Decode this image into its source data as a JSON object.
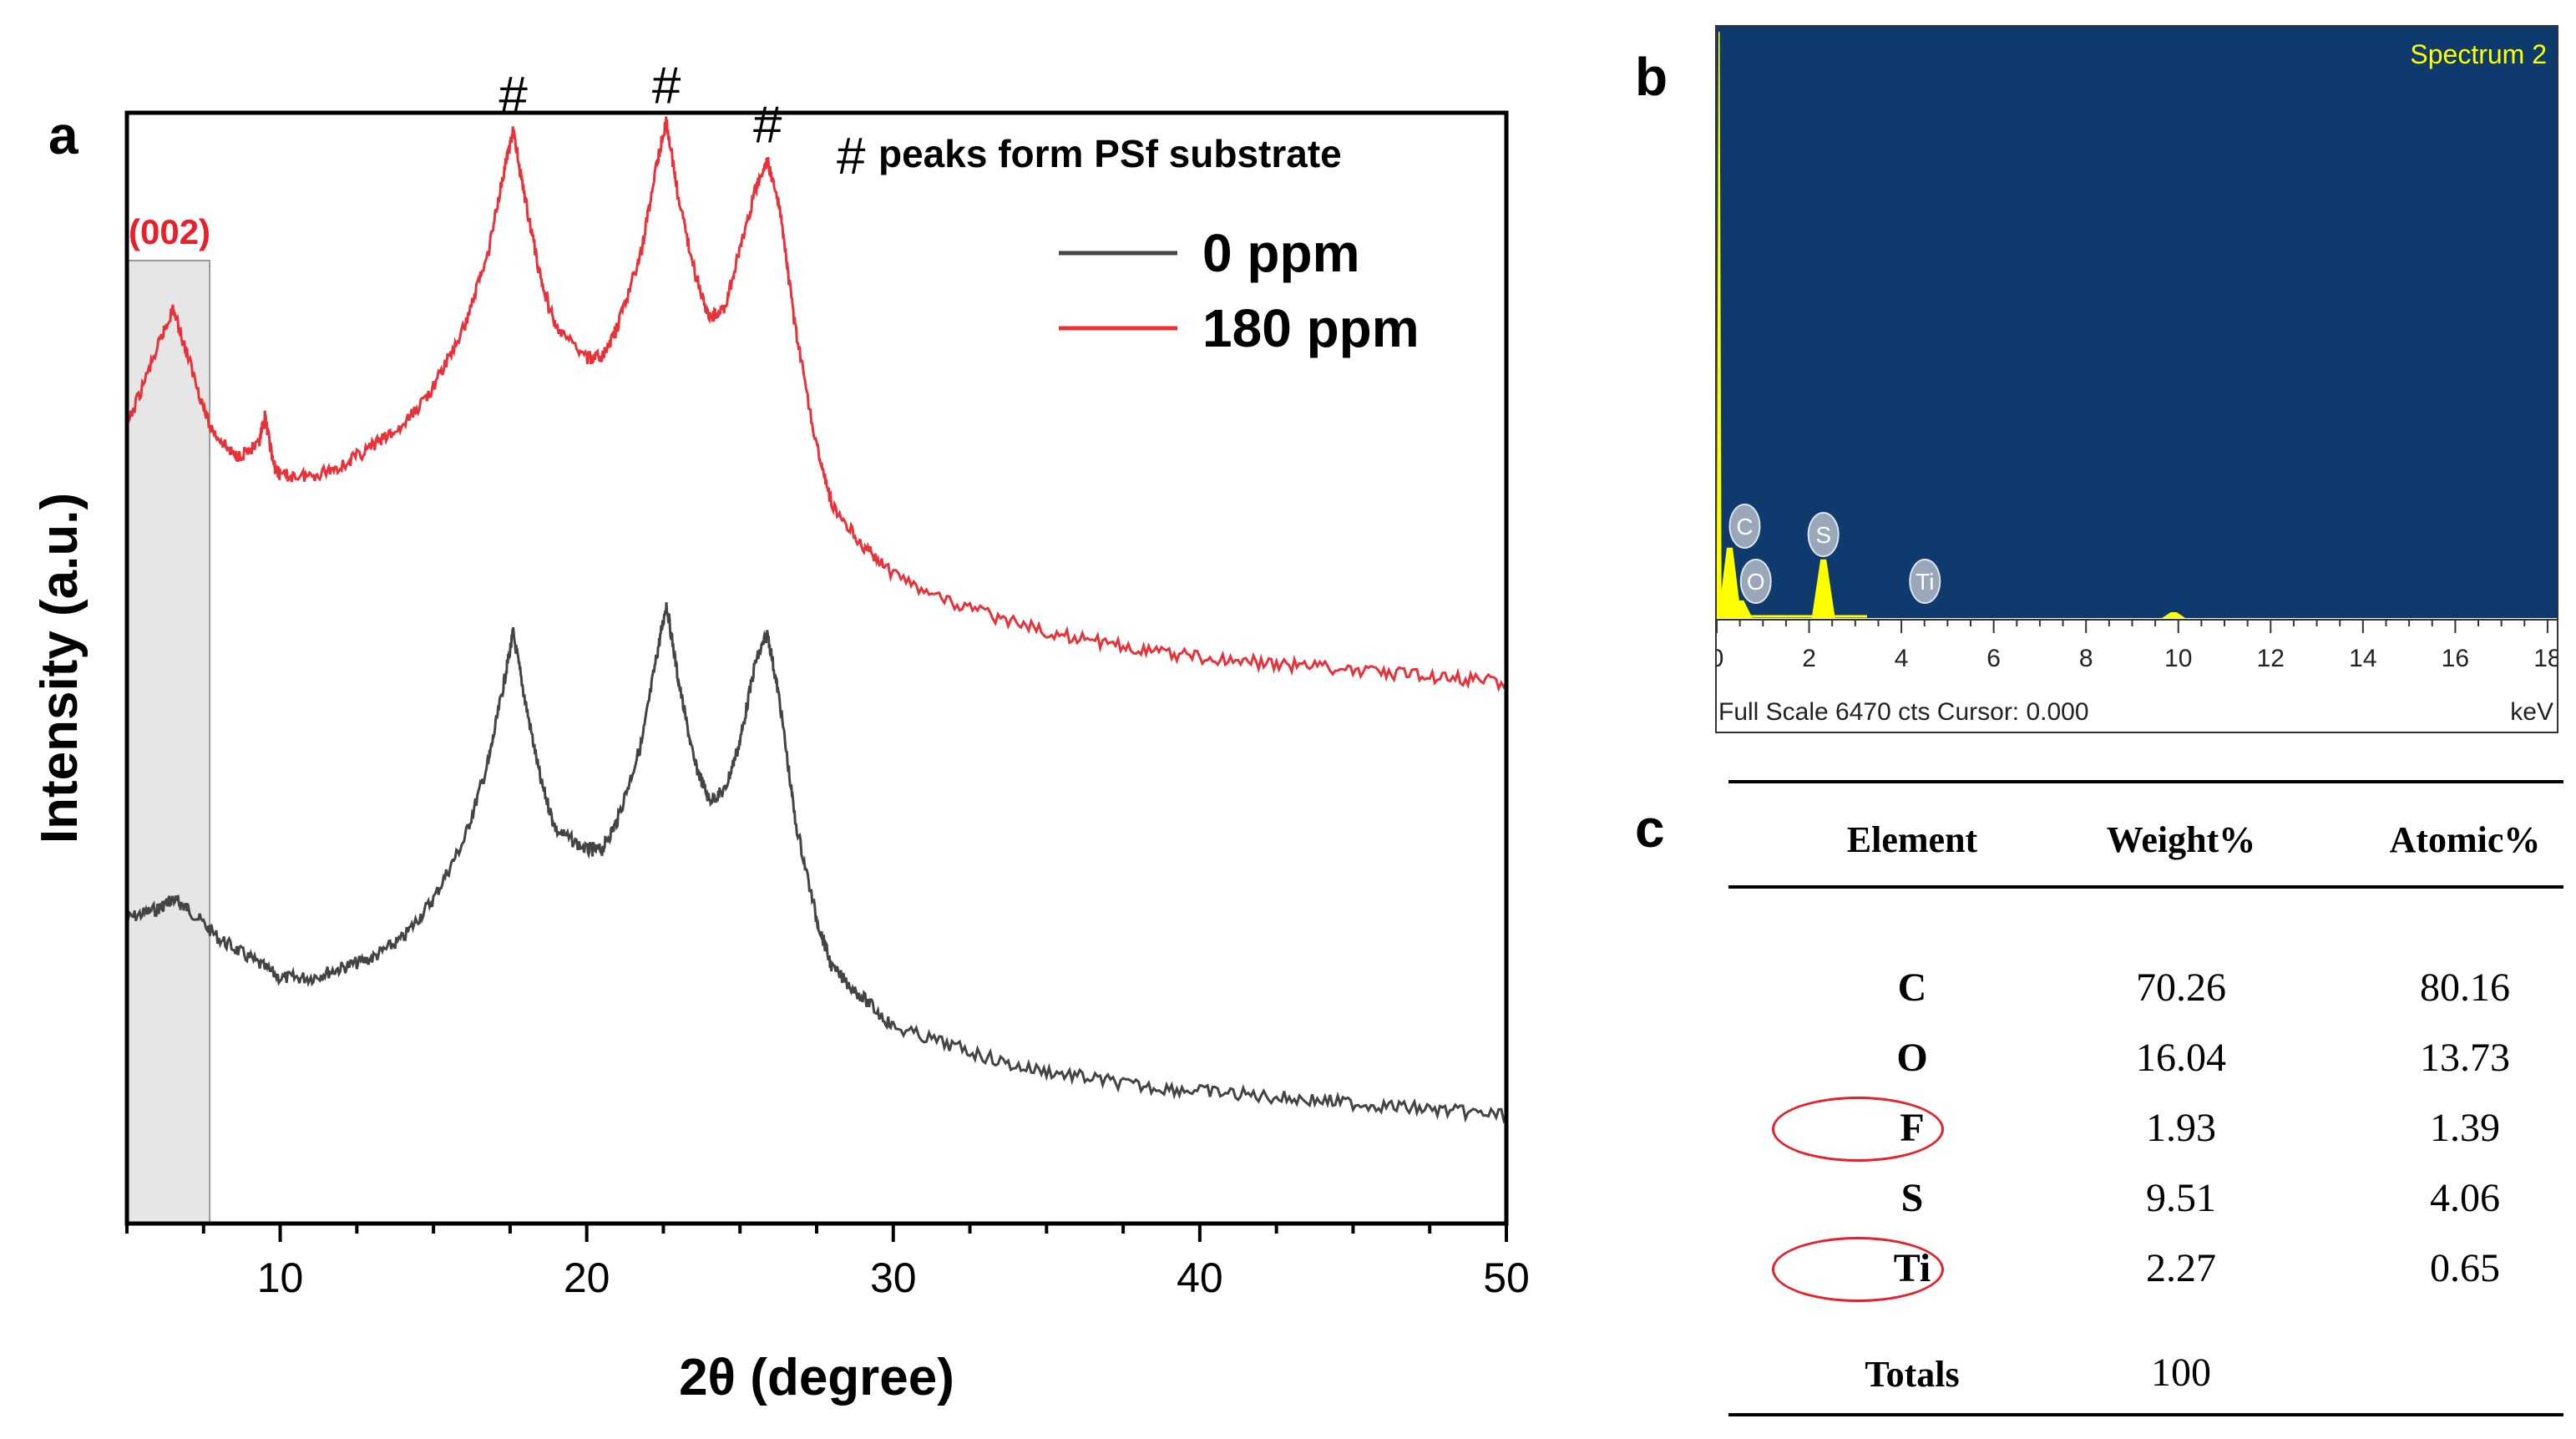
{
  "panels": {
    "a": "a",
    "b": "b",
    "c": "c"
  },
  "chart_data": [
    {
      "type": "line",
      "panel": "a",
      "xlabel": "2θ (degree)",
      "ylabel": "Intensity (a.u.)",
      "xlim": [
        5,
        50
      ],
      "x_ticks": [
        10,
        20,
        30,
        40,
        50
      ],
      "legend_position": "top-right",
      "annotation_text": "#peaks form PSf substrate",
      "peak_marker": "#",
      "peak_positions": [
        17.6,
        22.6,
        25.9
      ],
      "shaded_region": {
        "label": "(002)",
        "x_range": [
          5,
          7.7
        ]
      },
      "colors": {
        "0 ppm": "#444444",
        "180 ppm": "#e8323a",
        "shade": "#e6e6e6",
        "label_002": "#e8202a"
      },
      "series": [
        {
          "name": "0 ppm",
          "x": [
            5,
            6,
            6.5,
            7,
            8,
            9,
            10,
            11,
            12,
            13,
            14,
            15,
            16,
            16.8,
            17.3,
            17.6,
            18,
            18.5,
            19,
            20,
            20.5,
            21,
            21.8,
            22.3,
            22.6,
            23,
            23.5,
            24,
            24.5,
            25,
            25.5,
            25.9,
            26.3,
            26.8,
            27.5,
            28,
            29,
            30,
            32,
            34,
            36,
            38,
            40,
            42,
            44,
            46,
            48,
            50
          ],
          "y": [
            0.28,
            0.29,
            0.3,
            0.29,
            0.26,
            0.24,
            0.22,
            0.22,
            0.23,
            0.24,
            0.26,
            0.3,
            0.36,
            0.44,
            0.52,
            0.57,
            0.5,
            0.42,
            0.37,
            0.35,
            0.35,
            0.38,
            0.46,
            0.55,
            0.6,
            0.52,
            0.44,
            0.4,
            0.41,
            0.46,
            0.54,
            0.57,
            0.5,
            0.38,
            0.28,
            0.23,
            0.2,
            0.17,
            0.15,
            0.13,
            0.12,
            0.11,
            0.105,
            0.1,
            0.095,
            0.09,
            0.085,
            0.08
          ]
        },
        {
          "name": "180 ppm",
          "x": [
            5,
            6,
            6.5,
            7,
            7.7,
            8.5,
            9.3,
            9.5,
            9.8,
            10,
            11,
            12,
            13,
            14,
            15,
            16,
            16.8,
            17.3,
            17.6,
            18,
            18.5,
            19,
            20,
            20.5,
            21,
            21.8,
            22.3,
            22.6,
            23,
            23.5,
            24,
            24.5,
            25,
            25.5,
            25.9,
            26.3,
            26.8,
            27.5,
            28,
            29,
            30,
            32,
            34,
            36,
            38,
            40,
            42,
            44,
            46,
            48,
            50
          ],
          "y": [
            0.78,
            0.86,
            0.9,
            0.85,
            0.78,
            0.75,
            0.76,
            0.79,
            0.74,
            0.73,
            0.73,
            0.74,
            0.76,
            0.78,
            0.82,
            0.88,
            0.96,
            1.04,
            1.08,
            1.01,
            0.93,
            0.88,
            0.85,
            0.85,
            0.88,
            0.96,
            1.05,
            1.09,
            1.01,
            0.94,
            0.89,
            0.9,
            0.96,
            1.02,
            1.05,
            1.0,
            0.88,
            0.76,
            0.7,
            0.66,
            0.63,
            0.6,
            0.58,
            0.565,
            0.555,
            0.545,
            0.54,
            0.535,
            0.53,
            0.525,
            0.52
          ]
        }
      ]
    },
    {
      "type": "bar",
      "panel": "b",
      "title": "Spectrum 2",
      "xlabel": "keV",
      "xlim": [
        0,
        18.2
      ],
      "x_ticks": [
        0,
        2,
        4,
        6,
        8,
        10,
        12,
        14,
        16,
        18
      ],
      "footer": "Full Scale 6470 cts Cursor: 0.000",
      "element_markers": [
        {
          "label": "C",
          "x": 0.28
        },
        {
          "label": "O",
          "x": 0.52
        },
        {
          "label": "S",
          "x": 2.31
        },
        {
          "label": "Ti",
          "x": 4.51
        }
      ],
      "colors": {
        "background": "#0f3a6e",
        "spectrum": "#ffff00",
        "title": "#ffff00"
      },
      "peaks": [
        {
          "x": 0.05,
          "height": 1.0
        },
        {
          "x": 0.28,
          "height": 0.12
        },
        {
          "x": 0.52,
          "height": 0.03
        },
        {
          "x": 2.31,
          "height": 0.1
        },
        {
          "x": 9.9,
          "height": 0.01
        }
      ]
    },
    {
      "type": "table",
      "panel": "c",
      "columns": [
        "Element",
        "Weight%",
        "Atomic%"
      ],
      "rows": [
        {
          "element": "C",
          "weight": "70.26",
          "atomic": "80.16",
          "circled": false
        },
        {
          "element": "O",
          "weight": "16.04",
          "atomic": "13.73",
          "circled": false
        },
        {
          "element": "F",
          "weight": "1.93",
          "atomic": "1.39",
          "circled": true
        },
        {
          "element": "S",
          "weight": "9.51",
          "atomic": "4.06",
          "circled": false
        },
        {
          "element": "Ti",
          "weight": "2.27",
          "atomic": "0.65",
          "circled": true
        }
      ],
      "totals": {
        "label": "Totals",
        "weight": "100"
      }
    }
  ]
}
